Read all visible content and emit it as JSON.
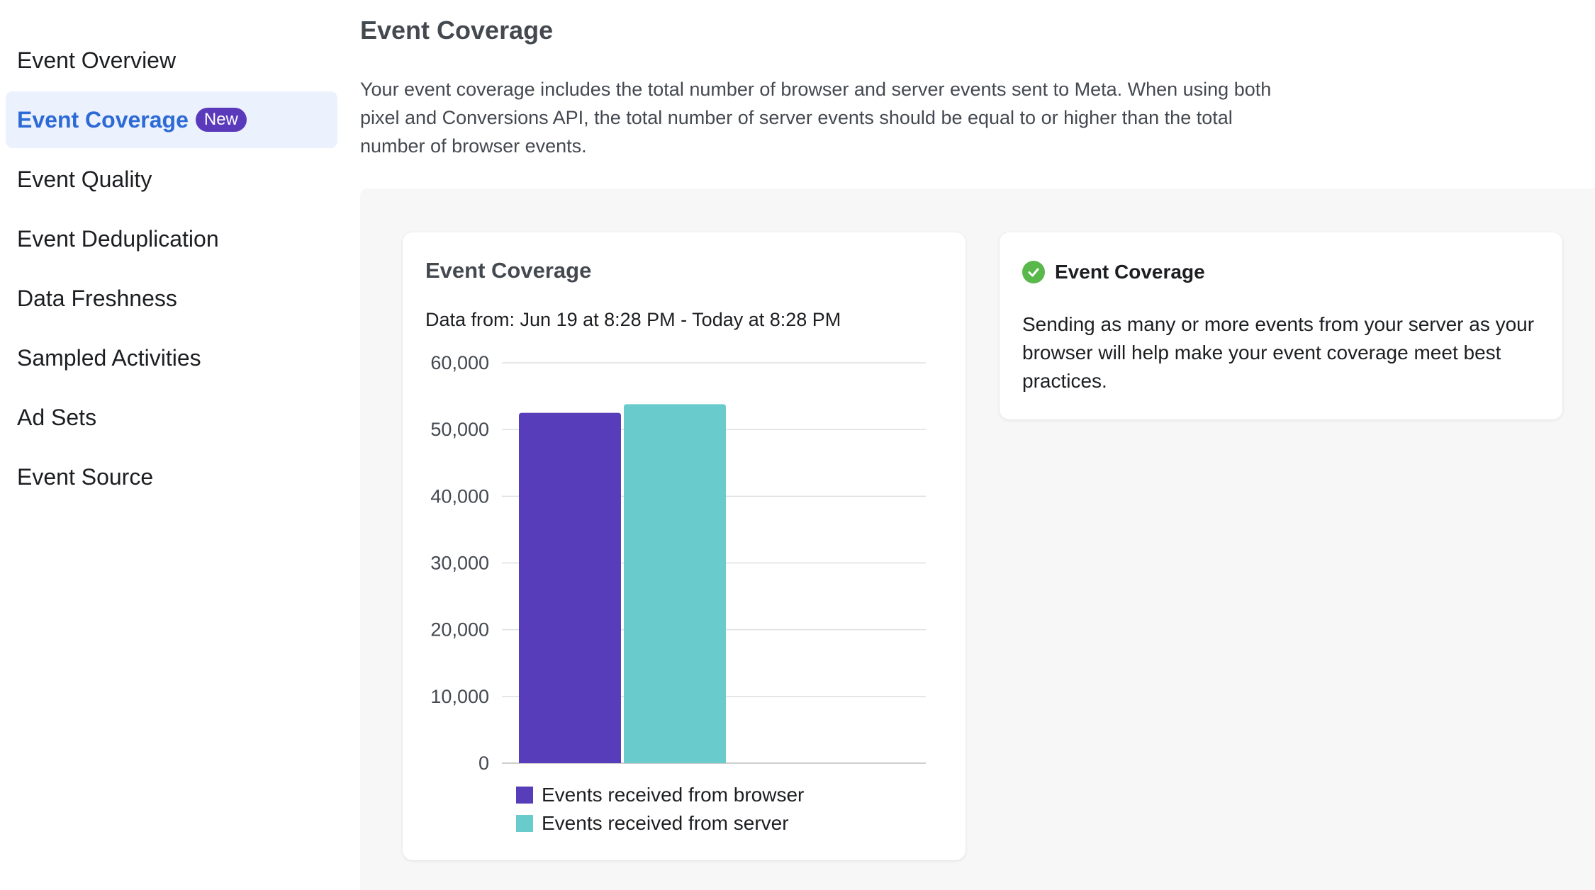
{
  "sidebar": {
    "items": [
      {
        "label": "Event Overview"
      },
      {
        "label": "Event Coverage",
        "badge": "New",
        "active": true
      },
      {
        "label": "Event Quality"
      },
      {
        "label": "Event Deduplication"
      },
      {
        "label": "Data Freshness"
      },
      {
        "label": "Sampled Activities"
      },
      {
        "label": "Ad Sets"
      },
      {
        "label": "Event Source"
      }
    ]
  },
  "main": {
    "title": "Event Coverage",
    "description": "Your event coverage includes the total number of browser and server events sent to Meta. When using both pixel and Conversions API, the total number of server events should be equal to or higher than the total number of browser events."
  },
  "chart_card": {
    "title": "Event Coverage",
    "date_range": "Data from: Jun 19 at 8:28 PM - Today at 8:28 PM"
  },
  "info_card": {
    "title": "Event Coverage",
    "icon": "check-circle-icon",
    "body": "Sending as many or more events from your server as your browser will help make your event coverage meet best practices."
  },
  "colors": {
    "accent": "#2d6ad6",
    "badge": "#5a3aba",
    "browser": "#583dba",
    "server": "#6acbcc",
    "success": "#59b84a"
  },
  "chart_data": {
    "type": "bar",
    "title": "Event Coverage",
    "series": [
      {
        "name": "Events received from browser",
        "value": 52500,
        "color": "#583dba"
      },
      {
        "name": "Events received from server",
        "value": 53800,
        "color": "#6acbcc"
      }
    ],
    "ylim": [
      0,
      60000
    ],
    "yticks": [
      0,
      10000,
      20000,
      30000,
      40000,
      50000,
      60000
    ],
    "ytick_labels": [
      "0",
      "10,000",
      "20,000",
      "30,000",
      "40,000",
      "50,000",
      "60,000"
    ],
    "grid": true,
    "legend_position": "bottom"
  }
}
